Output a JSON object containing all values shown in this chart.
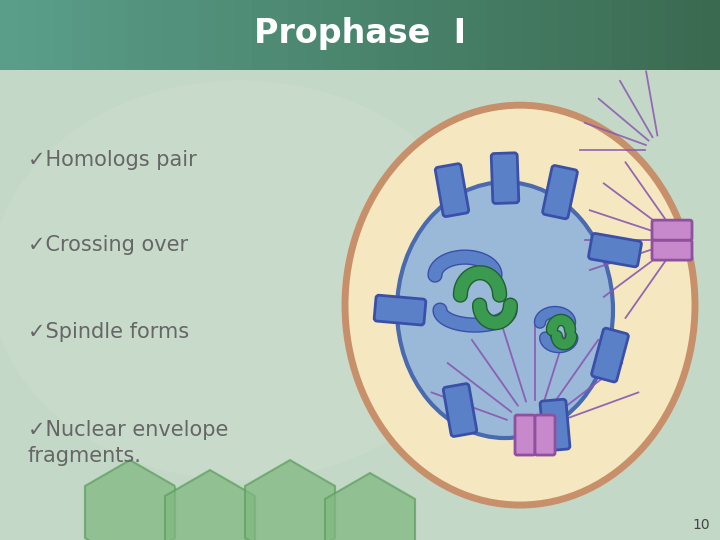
{
  "title": "Prophase  I",
  "title_color": "#ffffff",
  "title_bg_color_left": "#5a9e8a",
  "title_bg_color_right": "#3a6a50",
  "bg_color_main": "#b8d4c0",
  "bg_color_lower": "#a8ccb8",
  "bullet_color": "#666666",
  "bullets": [
    "✓Homologs pair",
    "✓Crossing over",
    "✓Spindle forms",
    "✓Nuclear envelope\nfragments."
  ],
  "page_number": "10",
  "cell_outer_color": "#c8906a",
  "cell_fill_color": "#f5e8c0",
  "nucleus_fill_color": "#9ab8d8",
  "nucleus_border_color": "#4a6ab0",
  "chromosome_blue_fill": "#5a80c8",
  "chromosome_blue_edge": "#3a50a8",
  "chromosome_green_fill": "#3a9a50",
  "chromosome_green_edge": "#206030",
  "spindle_color": "#8858b0",
  "centrosome_fill": "#c888cc",
  "centrosome_edge": "#9050a0",
  "hex_color": "#80b880",
  "hex_edge": "#60a060",
  "white_line": "#e8f8f0"
}
